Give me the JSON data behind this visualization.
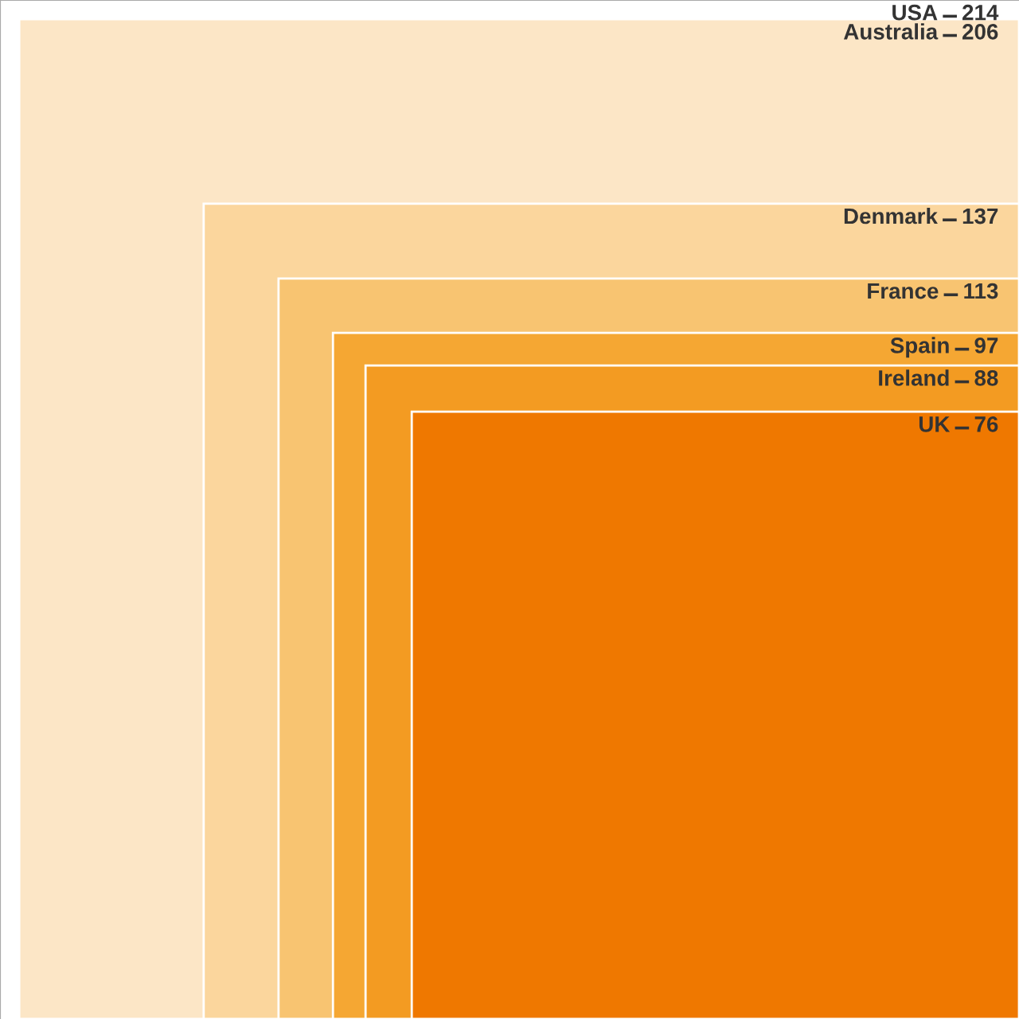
{
  "chart_data": {
    "type": "other",
    "categories": [
      "USA",
      "Australia",
      "Denmark",
      "France",
      "Spain",
      "Ireland",
      "UK"
    ],
    "values": [
      214,
      206,
      137,
      113,
      97,
      88,
      76
    ],
    "data_labels": true,
    "colors": [
      "#ffffff",
      "#fce6c6",
      "#fbd69d",
      "#f8c471",
      "#f5a733",
      "#f39b22",
      "#ef7800"
    ]
  }
}
